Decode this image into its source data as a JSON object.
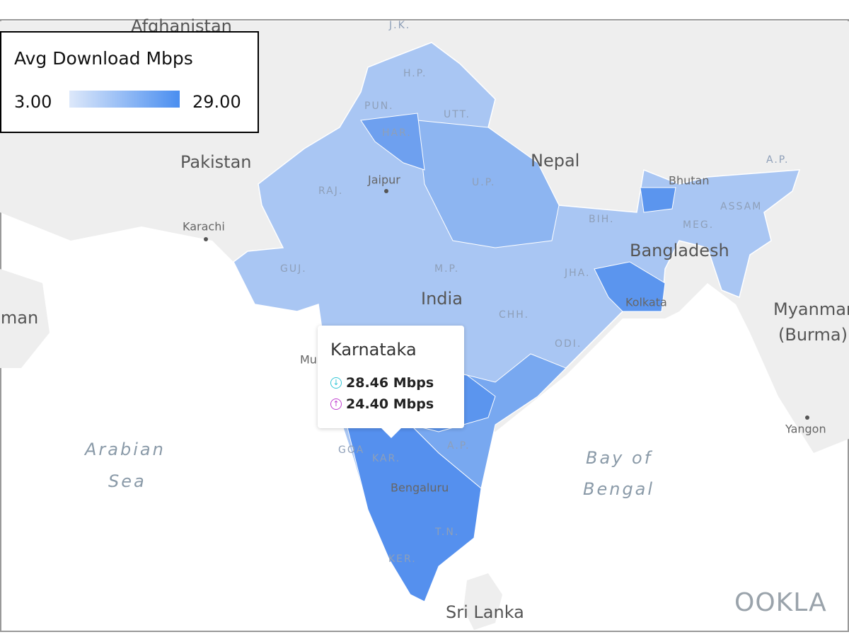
{
  "legend": {
    "title": "Avg Download Mbps",
    "min": "3.00",
    "max": "29.00"
  },
  "tooltip": {
    "title": "Karnataka",
    "download": "28.46 Mbps",
    "upload": "24.40 Mbps"
  },
  "countries": [
    "Afghanistan",
    "Pakistan",
    "Nepal",
    "Bhutan",
    "Bangladesh",
    "India",
    "Myanmar",
    "(Burma)",
    "Oman",
    "Sri Lanka"
  ],
  "states": [
    "J.K.",
    "H.P.",
    "PUN.",
    "UTT.",
    "HAR.",
    "RAJ.",
    "U.P.",
    "BIH.",
    "A.P.",
    "ASSAM",
    "MEG.",
    "GUJ.",
    "M.P.",
    "JHA.",
    "CHH.",
    "ODI.",
    "A.P.",
    "KAR.",
    "T.N.",
    "KER.",
    "GOA"
  ],
  "cities": [
    "Jaipur",
    "Karachi",
    "Kolkata",
    "Mumbai",
    "Bengaluru",
    "Yangon"
  ],
  "seas": [
    [
      "Arabian",
      "Sea"
    ],
    [
      "Bay of",
      "Bengal"
    ]
  ],
  "logo": "OOKLA"
}
